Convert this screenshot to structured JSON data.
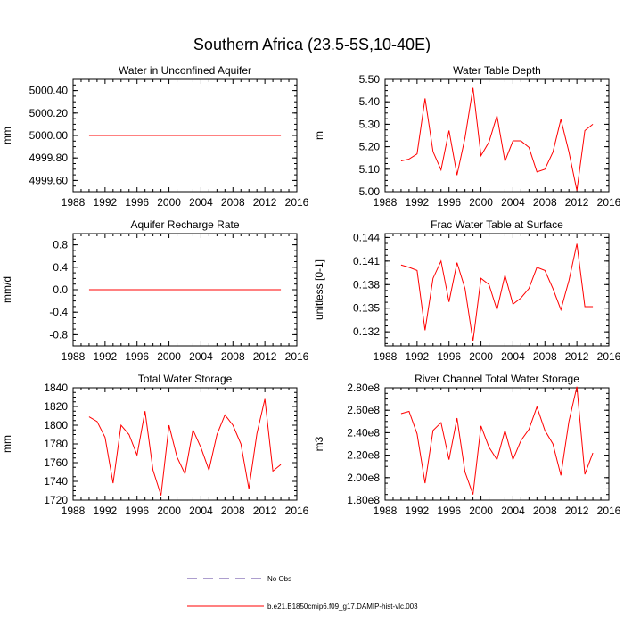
{
  "figure": {
    "title": "Southern Africa (23.5-5S,10-40E)"
  },
  "legend": {
    "entries": [
      {
        "label": "No Obs",
        "color": "#5b3c9e",
        "style": "dashed"
      },
      {
        "label": "b.e21.B1850cmip6.f09_g17.DAMIP-hist-vlc.003",
        "color": "#ff0000",
        "style": "solid"
      }
    ]
  },
  "chart_data": [
    {
      "type": "line",
      "title": "Water in Unconfined Aquifer",
      "xlabel": "",
      "ylabel": "mm",
      "xlim": [
        1988,
        2016
      ],
      "ylim": [
        4999.5,
        5000.5
      ],
      "xticks": [
        "1988",
        "1992",
        "1996",
        "2000",
        "2004",
        "2008",
        "2012",
        "2016"
      ],
      "yticks": [
        {
          "v": 4999.6,
          "l": "4999.60"
        },
        {
          "v": 4999.8,
          "l": "4999.80"
        },
        {
          "v": 5000.0,
          "l": "5000.00"
        },
        {
          "v": 5000.2,
          "l": "5000.20"
        },
        {
          "v": 5000.4,
          "l": "5000.40"
        }
      ],
      "x": [
        1990,
        2014
      ],
      "series": [
        {
          "name": "b.e21.B1850cmip6.f09_g17.DAMIP-hist-vlc.003",
          "values": [
            5000.0,
            5000.0
          ]
        }
      ]
    },
    {
      "type": "line",
      "title": "Water Table Depth",
      "xlabel": "",
      "ylabel": "m",
      "xlim": [
        1988,
        2016
      ],
      "ylim": [
        5.0,
        5.5
      ],
      "xticks": [
        "1988",
        "1992",
        "1996",
        "2000",
        "2004",
        "2008",
        "2012",
        "2016"
      ],
      "yticks": [
        {
          "v": 5.0,
          "l": "5.00"
        },
        {
          "v": 5.1,
          "l": "5.10"
        },
        {
          "v": 5.2,
          "l": "5.20"
        },
        {
          "v": 5.3,
          "l": "5.30"
        },
        {
          "v": 5.4,
          "l": "5.40"
        },
        {
          "v": 5.5,
          "l": "5.50"
        }
      ],
      "x": [
        1990,
        1991,
        1992,
        1993,
        1994,
        1995,
        1996,
        1997,
        1998,
        1999,
        2000,
        2001,
        2002,
        2003,
        2004,
        2005,
        2006,
        2007,
        2008,
        2009,
        2010,
        2011,
        2012,
        2013,
        2014
      ],
      "series": [
        {
          "name": "b.e21.B1850cmip6.f09_g17.DAMIP-hist-vlc.003",
          "values": [
            5.137,
            5.145,
            5.168,
            5.415,
            5.178,
            5.097,
            5.272,
            5.074,
            5.24,
            5.462,
            5.16,
            5.221,
            5.338,
            5.135,
            5.226,
            5.226,
            5.197,
            5.088,
            5.1,
            5.176,
            5.322,
            5.177,
            5.005,
            5.272,
            5.3
          ]
        }
      ]
    },
    {
      "type": "line",
      "title": "Aquifer Recharge Rate",
      "xlabel": "",
      "ylabel": "mm/d",
      "xlim": [
        1988,
        2016
      ],
      "ylim": [
        -1.0,
        1.0
      ],
      "xticks": [
        "1988",
        "1992",
        "1996",
        "2000",
        "2004",
        "2008",
        "2012",
        "2016"
      ],
      "yticks": [
        {
          "v": -0.8,
          "l": "-0.8"
        },
        {
          "v": -0.4,
          "l": "-0.4"
        },
        {
          "v": 0.0,
          "l": "0.0"
        },
        {
          "v": 0.4,
          "l": "0.4"
        },
        {
          "v": 0.8,
          "l": "0.8"
        }
      ],
      "x": [
        1990,
        2014
      ],
      "series": [
        {
          "name": "b.e21.B1850cmip6.f09_g17.DAMIP-hist-vlc.003",
          "values": [
            0.0,
            0.0
          ]
        }
      ]
    },
    {
      "type": "line",
      "title": "Frac Water Table at Surface",
      "xlabel": "",
      "ylabel": "unitless [0-1]",
      "xlim": [
        1988,
        2016
      ],
      "ylim": [
        0.1302,
        0.1445
      ],
      "xticks": [
        "1988",
        "1992",
        "1996",
        "2000",
        "2004",
        "2008",
        "2012",
        "2016"
      ],
      "yticks": [
        {
          "v": 0.132,
          "l": "0.132"
        },
        {
          "v": 0.135,
          "l": "0.135"
        },
        {
          "v": 0.138,
          "l": "0.138"
        },
        {
          "v": 0.141,
          "l": "0.141"
        },
        {
          "v": 0.144,
          "l": "0.144"
        }
      ],
      "x": [
        1990,
        1991,
        1992,
        1993,
        1994,
        1995,
        1996,
        1997,
        1998,
        1999,
        2000,
        2001,
        2002,
        2003,
        2004,
        2005,
        2006,
        2007,
        2008,
        2009,
        2010,
        2011,
        2012,
        2013,
        2014
      ],
      "series": [
        {
          "name": "b.e21.B1850cmip6.f09_g17.DAMIP-hist-vlc.003",
          "values": [
            0.1405,
            0.1402,
            0.1398,
            0.1322,
            0.1388,
            0.141,
            0.1358,
            0.1408,
            0.1375,
            0.1308,
            0.1388,
            0.138,
            0.1348,
            0.1392,
            0.1355,
            0.1363,
            0.1375,
            0.1402,
            0.1398,
            0.1375,
            0.1348,
            0.1385,
            0.1432,
            0.1352,
            0.1352
          ]
        }
      ]
    },
    {
      "type": "line",
      "title": "Total Water Storage",
      "xlabel": "",
      "ylabel": "mm",
      "xlim": [
        1988,
        2016
      ],
      "ylim": [
        1720,
        1840
      ],
      "xticks": [
        "1988",
        "1992",
        "1996",
        "2000",
        "2004",
        "2008",
        "2012",
        "2016"
      ],
      "yticks": [
        {
          "v": 1720,
          "l": "1720"
        },
        {
          "v": 1740,
          "l": "1740"
        },
        {
          "v": 1760,
          "l": "1760"
        },
        {
          "v": 1780,
          "l": "1780"
        },
        {
          "v": 1800,
          "l": "1800"
        },
        {
          "v": 1820,
          "l": "1820"
        },
        {
          "v": 1840,
          "l": "1840"
        }
      ],
      "x": [
        1990,
        1991,
        1992,
        1993,
        1994,
        1995,
        1996,
        1997,
        1998,
        1999,
        2000,
        2001,
        2002,
        2003,
        2004,
        2005,
        2006,
        2007,
        2008,
        2009,
        2010,
        2011,
        2012,
        2013,
        2014
      ],
      "series": [
        {
          "name": "b.e21.B1850cmip6.f09_g17.DAMIP-hist-vlc.003",
          "values": [
            1809,
            1804,
            1787,
            1738,
            1800,
            1790,
            1768,
            1815,
            1752,
            1725,
            1800,
            1766,
            1748,
            1795,
            1776,
            1752,
            1790,
            1811,
            1800,
            1780,
            1732,
            1791,
            1828,
            1751,
            1758
          ]
        }
      ]
    },
    {
      "type": "line",
      "title": "River Channel Total Water Storage",
      "xlabel": "",
      "ylabel": "m3",
      "xlim": [
        1988,
        2016
      ],
      "ylim": [
        180000000.0,
        280000000.0
      ],
      "xticks": [
        "1988",
        "1992",
        "1996",
        "2000",
        "2004",
        "2008",
        "2012",
        "2016"
      ],
      "yticks": [
        {
          "v": 180000000.0,
          "l": "1.80e8"
        },
        {
          "v": 200000000.0,
          "l": "2.00e8"
        },
        {
          "v": 220000000.0,
          "l": "2.20e8"
        },
        {
          "v": 240000000.0,
          "l": "2.40e8"
        },
        {
          "v": 260000000.0,
          "l": "2.60e8"
        },
        {
          "v": 280000000.0,
          "l": "2.80e8"
        }
      ],
      "x": [
        1990,
        1991,
        1992,
        1993,
        1994,
        1995,
        1996,
        1997,
        1998,
        1999,
        2000,
        2001,
        2002,
        2003,
        2004,
        2005,
        2006,
        2007,
        2008,
        2009,
        2010,
        2011,
        2012,
        2013,
        2014
      ],
      "series": [
        {
          "name": "b.e21.B1850cmip6.f09_g17.DAMIP-hist-vlc.003",
          "values": [
            257000000.0,
            259000000.0,
            239000000.0,
            195000000.0,
            242000000.0,
            249000000.0,
            216000000.0,
            253000000.0,
            205000000.0,
            185000000.0,
            246000000.0,
            227000000.0,
            216000000.0,
            242000000.0,
            216000000.0,
            233000000.0,
            243000000.0,
            263000000.0,
            242000000.0,
            230000000.0,
            202000000.0,
            250000000.0,
            281000000.0,
            203000000.0,
            222000000.0
          ]
        }
      ]
    }
  ]
}
